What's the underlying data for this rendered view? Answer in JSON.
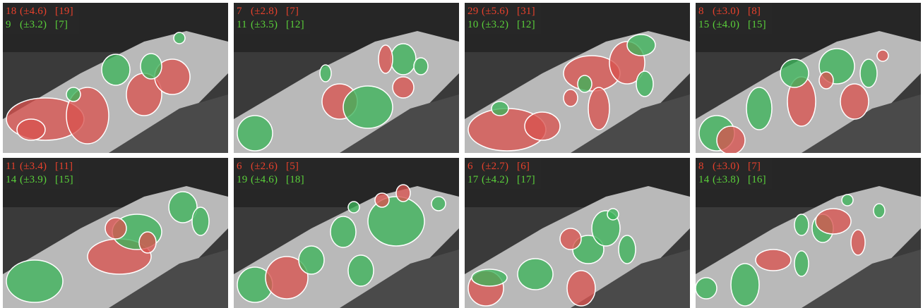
{
  "colors": {
    "red_text": "#e8412c",
    "green_text": "#5ad03a",
    "red_region": "#d9534f",
    "green_region": "#3cb35a",
    "outline": "#ffffff"
  },
  "panels": [
    {
      "red": {
        "count": "18",
        "std": "(±4.6)",
        "gt": "[19]"
      },
      "green": {
        "count": "9",
        "std": "(±3.2)",
        "gt": "[7]"
      }
    },
    {
      "red": {
        "count": "7",
        "std": "(±2.8)",
        "gt": "[7]"
      },
      "green": {
        "count": "11",
        "std": "(±3.5)",
        "gt": "[12]"
      }
    },
    {
      "red": {
        "count": "29",
        "std": "(±5.6)",
        "gt": "[31]"
      },
      "green": {
        "count": "10",
        "std": "(±3.2)",
        "gt": "[12]"
      }
    },
    {
      "red": {
        "count": "8",
        "std": "(±3.0)",
        "gt": "[8]"
      },
      "green": {
        "count": "15",
        "std": "(±4.0)",
        "gt": "[15]"
      }
    },
    {
      "red": {
        "count": "11",
        "std": "(±3.4)",
        "gt": "[11]"
      },
      "green": {
        "count": "14",
        "std": "(±3.9)",
        "gt": "[15]"
      }
    },
    {
      "red": {
        "count": "6",
        "std": "(±2.6)",
        "gt": "[5]"
      },
      "green": {
        "count": "19",
        "std": "(±4.6)",
        "gt": "[18]"
      }
    },
    {
      "red": {
        "count": "6",
        "std": "(±2.7)",
        "gt": "[6]"
      },
      "green": {
        "count": "17",
        "std": "(±4.2)",
        "gt": "[17]"
      }
    },
    {
      "red": {
        "count": "8",
        "std": "(±3.0)",
        "gt": "[7]"
      },
      "green": {
        "count": "14",
        "std": "(±3.8)",
        "gt": "[16]"
      }
    }
  ]
}
